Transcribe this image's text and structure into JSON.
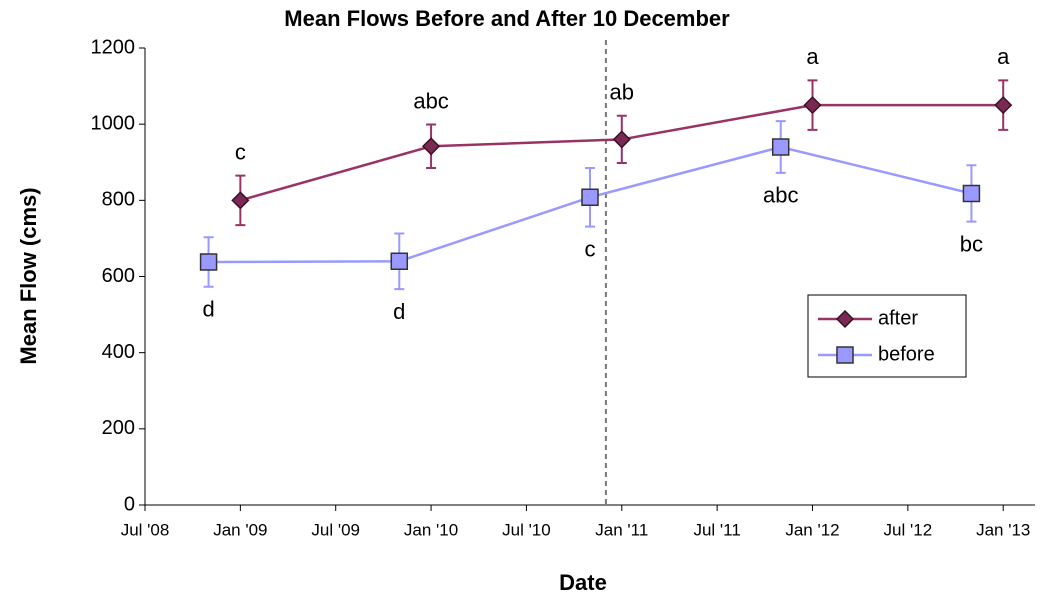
{
  "chart_data": {
    "type": "line",
    "title": "Mean Flows Before and After 10 December",
    "x_label": "Date",
    "y_label": "Mean Flow (cms)",
    "xlim": [
      "2008-07",
      "2013-03"
    ],
    "xticks": [
      {
        "value": "2008-07",
        "label": "Jul '08"
      },
      {
        "value": "2009-01",
        "label": "Jan '09"
      },
      {
        "value": "2009-07",
        "label": "Jul '09"
      },
      {
        "value": "2010-01",
        "label": "Jan '10"
      },
      {
        "value": "2010-07",
        "label": "Jul '10"
      },
      {
        "value": "2011-01",
        "label": "Jan '11"
      },
      {
        "value": "2011-07",
        "label": "Jul '11"
      },
      {
        "value": "2012-01",
        "label": "Jan '12"
      },
      {
        "value": "2012-07",
        "label": "Jul '12"
      },
      {
        "value": "2013-01",
        "label": "Jan '13"
      }
    ],
    "ylim": [
      0,
      1200
    ],
    "yticks": [
      0,
      200,
      400,
      600,
      800,
      1000,
      1200
    ],
    "vline_x": "2010-12",
    "legend": "right",
    "series": [
      {
        "name": "after",
        "color": "#993366",
        "marker": "diamond",
        "letters_position": "above",
        "x": [
          "2009-01",
          "2010-01",
          "2011-01",
          "2012-01",
          "2013-01"
        ],
        "values": [
          800,
          942,
          960,
          1050,
          1050
        ],
        "errors": [
          65,
          57,
          62,
          65,
          65
        ],
        "letters": [
          "c",
          "abc",
          "ab",
          "a",
          "a"
        ]
      },
      {
        "name": "before",
        "color": "#9999FF",
        "marker": "square",
        "letters_position": "below",
        "x": [
          "2008-11",
          "2009-11",
          "2010-11",
          "2011-11",
          "2012-11"
        ],
        "values": [
          638,
          640,
          808,
          940,
          818
        ],
        "errors": [
          65,
          73,
          77,
          68,
          74
        ],
        "letters": [
          "d",
          "d",
          "c",
          "abc",
          "bc"
        ]
      }
    ]
  }
}
